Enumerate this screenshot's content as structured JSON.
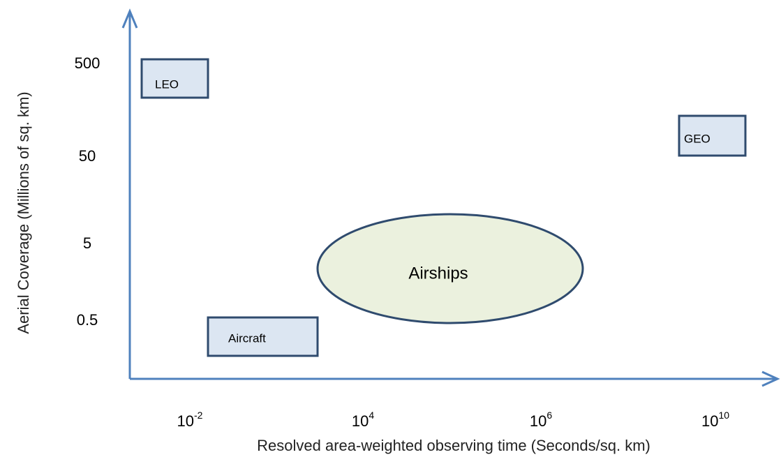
{
  "y_axis": {
    "title": "Aerial Coverage (Millions of sq. km)",
    "ticks": [
      "500",
      "50",
      "5",
      "0.5"
    ]
  },
  "x_axis": {
    "title": "Resolved area-weighted observing time (Seconds/sq. km)",
    "ticks": [
      {
        "base": "10",
        "exp": "-2"
      },
      {
        "base": "10",
        "exp": "4"
      },
      {
        "base": "10",
        "exp": "6"
      },
      {
        "base": "10",
        "exp": "10"
      }
    ]
  },
  "regions": [
    {
      "label": "LEO",
      "shape": "box"
    },
    {
      "label": "GEO",
      "shape": "box"
    },
    {
      "label": "Aircraft",
      "shape": "box"
    },
    {
      "label": "Airships",
      "shape": "ellipse"
    }
  ]
}
